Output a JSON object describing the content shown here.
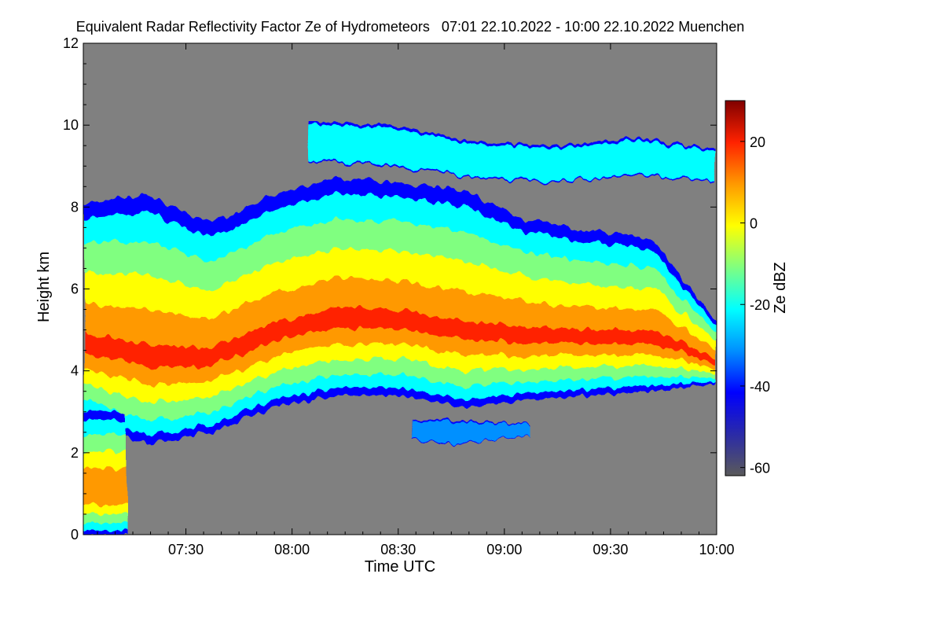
{
  "chart_data": {
    "type": "heatmap",
    "title": "Equivalent Radar Reflectivity Factor Ze of Hydrometeors   07:01 22.10.2022 - 10:00 22.10.2022 Muenchen",
    "xlabel": "Time UTC",
    "ylabel": "Height km",
    "colorbar_label": "Ze dBZ",
    "x_range_minutes_utc": [
      421,
      600
    ],
    "x_ticks": [
      {
        "minute": 450,
        "label": "07:30"
      },
      {
        "minute": 480,
        "label": "08:00"
      },
      {
        "minute": 510,
        "label": "08:30"
      },
      {
        "minute": 540,
        "label": "09:00"
      },
      {
        "minute": 570,
        "label": "09:30"
      },
      {
        "minute": 600,
        "label": "10:00"
      }
    ],
    "ylim_km": [
      0,
      12
    ],
    "y_ticks": [
      0,
      2,
      4,
      6,
      8,
      10,
      12
    ],
    "colorbar_range_dbz": [
      -62,
      30
    ],
    "colorbar_ticks": [
      -60,
      -40,
      -20,
      0,
      20
    ],
    "no_data_color": "#808080",
    "colormap": [
      "#5a5a5a",
      "#2a2aa8",
      "#0000ff",
      "#0090ff",
      "#00ffff",
      "#80ff80",
      "#ffff00",
      "#ff9900",
      "#ff2200",
      "#800000"
    ],
    "echo_features": [
      {
        "name": "main stratiform cloud",
        "t_start": 421,
        "t_end": 600,
        "base_km": [
          2.8,
          2.2,
          2.5,
          3.1,
          3.4,
          3.4,
          3.1,
          3.3,
          3.4,
          3.5,
          3.7
        ],
        "top_km": [
          8.1,
          8.3,
          7.6,
          8.3,
          8.7,
          8.6,
          8.4,
          7.7,
          7.4,
          7.2,
          5.2
        ],
        "core_dbz": 15
      },
      {
        "name": "upper cirrus layer",
        "t_start": 485,
        "t_end": 600,
        "base_km": [
          9.1,
          9.0,
          8.7,
          8.6,
          8.8,
          8.6
        ],
        "top_km": [
          10.1,
          10.0,
          9.6,
          9.5,
          9.7,
          9.4
        ],
        "core_dbz": -22
      },
      {
        "name": "low virga layer",
        "t_start": 514,
        "t_end": 547,
        "base_km": [
          2.3,
          2.2,
          2.3,
          2.4
        ],
        "top_km": [
          2.8,
          2.8,
          2.75,
          2.7
        ],
        "core_dbz": -35
      },
      {
        "name": "precipitation reaching ground",
        "t_start": 421,
        "t_end": 433,
        "base_km": [
          0.0,
          0.0,
          0.0
        ],
        "top_km": [
          3.0,
          3.0,
          3.0
        ],
        "core_dbz": 5
      }
    ]
  }
}
